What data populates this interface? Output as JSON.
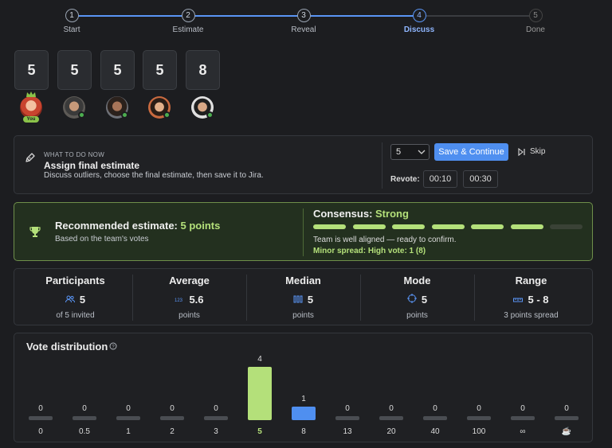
{
  "stepper": {
    "steps": [
      {
        "num": "1",
        "label": "Start"
      },
      {
        "num": "2",
        "label": "Estimate"
      },
      {
        "num": "3",
        "label": "Reveal"
      },
      {
        "num": "4",
        "label": "Discuss"
      },
      {
        "num": "5",
        "label": "Done"
      }
    ],
    "active_index": 4
  },
  "votes": {
    "cards": [
      "5",
      "5",
      "5",
      "5",
      "8"
    ],
    "you_badge": "You"
  },
  "action_panel": {
    "eyebrow": "WHAT TO DO NOW",
    "title": "Assign final estimate",
    "description": "Discuss outliers, choose the final estimate, then save it to Jira.",
    "select_value": "5",
    "save_label": "Save & Continue",
    "skip_label": "Skip",
    "revote_label": "Revote:",
    "revote_options": [
      "00:10",
      "00:30"
    ]
  },
  "recommendation": {
    "title_prefix": "Recommended estimate: ",
    "title_value": "5 points",
    "subtitle": "Based on the team's votes",
    "consensus_prefix": "Consensus: ",
    "consensus_value": "Strong",
    "consensus_level": 0.857,
    "consensus_segments_total": 7,
    "consensus_segments_filled": 6,
    "message": "Team is well aligned — ready to confirm.",
    "spread_note": "Minor spread: High vote: 1 (8)",
    "accent_color": "#b4e07a"
  },
  "stats": [
    {
      "title": "Participants",
      "icon": "participants-icon",
      "value": "5",
      "sub": "of 5 invited"
    },
    {
      "title": "Average",
      "icon": "average-icon",
      "value": "5.6",
      "sub": "points"
    },
    {
      "title": "Median",
      "icon": "median-icon",
      "value": "5",
      "sub": "points"
    },
    {
      "title": "Mode",
      "icon": "mode-icon",
      "value": "5",
      "sub": "points"
    },
    {
      "title": "Range",
      "icon": "range-icon",
      "value": "5 - 8",
      "sub": "3 points spread"
    }
  ],
  "distribution": {
    "title": "Vote distribution",
    "help_icon": "help-icon"
  },
  "chart_data": {
    "type": "bar",
    "title": "Vote distribution",
    "categories": [
      "0",
      "0.5",
      "1",
      "2",
      "3",
      "5",
      "8",
      "13",
      "20",
      "40",
      "100",
      "∞",
      "☕"
    ],
    "values": [
      0,
      0,
      0,
      0,
      0,
      4,
      1,
      0,
      0,
      0,
      0,
      0,
      0
    ],
    "colors": {
      "highlight": "#b4e07a",
      "secondary": "#4f8ff0",
      "empty": "#4a4d52"
    }
  }
}
